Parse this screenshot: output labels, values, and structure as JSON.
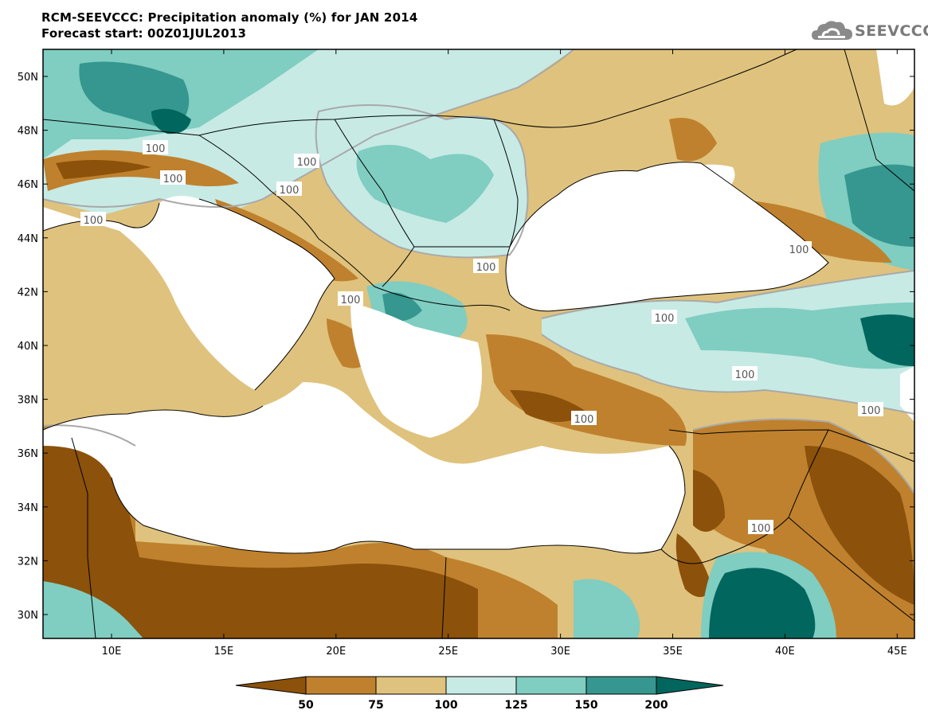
{
  "header": {
    "title_line1": "RCM-SEEVCCC: Precipitation anomaly (%) for JAN 2014",
    "title_line2": "Forecast start: 00Z01JUL2013"
  },
  "logo": {
    "text": "SEEVCCC",
    "icon": "cloud-logo-icon"
  },
  "axes": {
    "lon_labels": [
      "10E",
      "15E",
      "20E",
      "25E",
      "30E",
      "35E",
      "40E",
      "45E"
    ],
    "lat_labels": [
      "50N",
      "48N",
      "46N",
      "44N",
      "42N",
      "40N",
      "38N",
      "36N",
      "34N",
      "32N",
      "30N"
    ]
  },
  "contour_label": "100",
  "colorbar": {
    "labels": [
      "50",
      "75",
      "100",
      "125",
      "150",
      "200"
    ],
    "colors": [
      "#8c510a",
      "#bf812d",
      "#dfc27d",
      "#c7eae5",
      "#80cdc1",
      "#35978f",
      "#01665e"
    ]
  },
  "colors": {
    "sea": "#ffffff",
    "contour_line": "#a9a9a9",
    "border_line": "#000000"
  }
}
